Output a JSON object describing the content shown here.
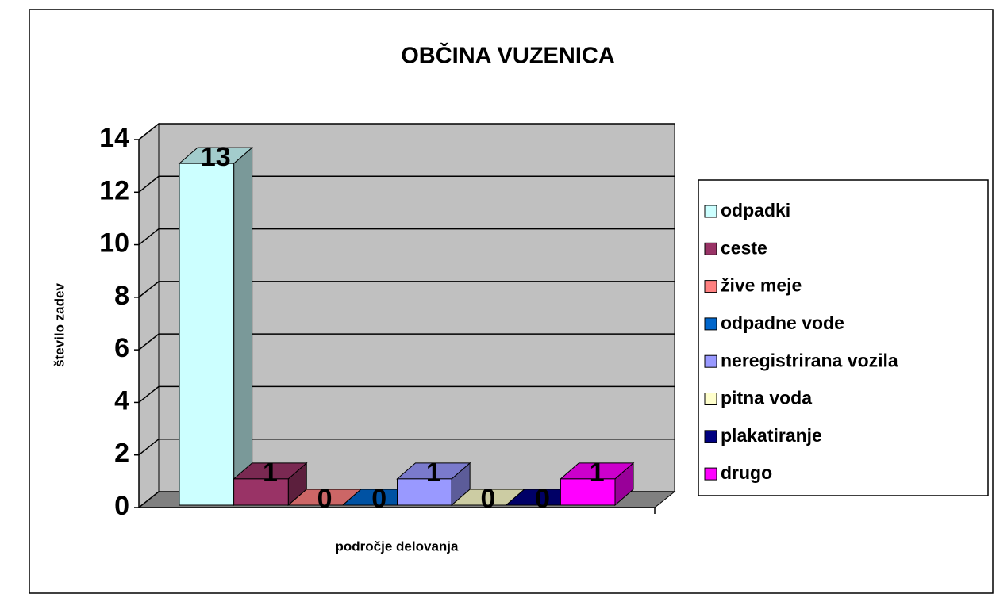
{
  "chart_data": {
    "type": "bar3d",
    "title": "OBČINA VUZENICA",
    "x_label": "področje delovanja",
    "y_label": "število zadev",
    "categories": [
      null
    ],
    "series": [
      {
        "name": "odpadki",
        "color": "#ccffff",
        "values": [
          13
        ]
      },
      {
        "name": "ceste",
        "color": "#993366",
        "values": [
          1
        ]
      },
      {
        "name": "žive meje",
        "color": "#ff8080",
        "values": [
          0
        ]
      },
      {
        "name": "odpadne vode",
        "color": "#0066cc",
        "values": [
          0
        ]
      },
      {
        "name": "neregistrirana vozila",
        "color": "#9999ff",
        "values": [
          1
        ]
      },
      {
        "name": "pitna voda",
        "color": "#ffffcc",
        "values": [
          0
        ]
      },
      {
        "name": "plakatiranje",
        "color": "#000080",
        "values": [
          0
        ]
      },
      {
        "name": "drugo",
        "color": "#ff00ff",
        "values": [
          1
        ]
      }
    ],
    "ylim": [
      0,
      14
    ],
    "yticks": [
      0,
      2,
      4,
      6,
      8,
      10,
      12,
      14
    ],
    "grid": true,
    "wall_color": "#c0c0c0",
    "legend": "right"
  }
}
